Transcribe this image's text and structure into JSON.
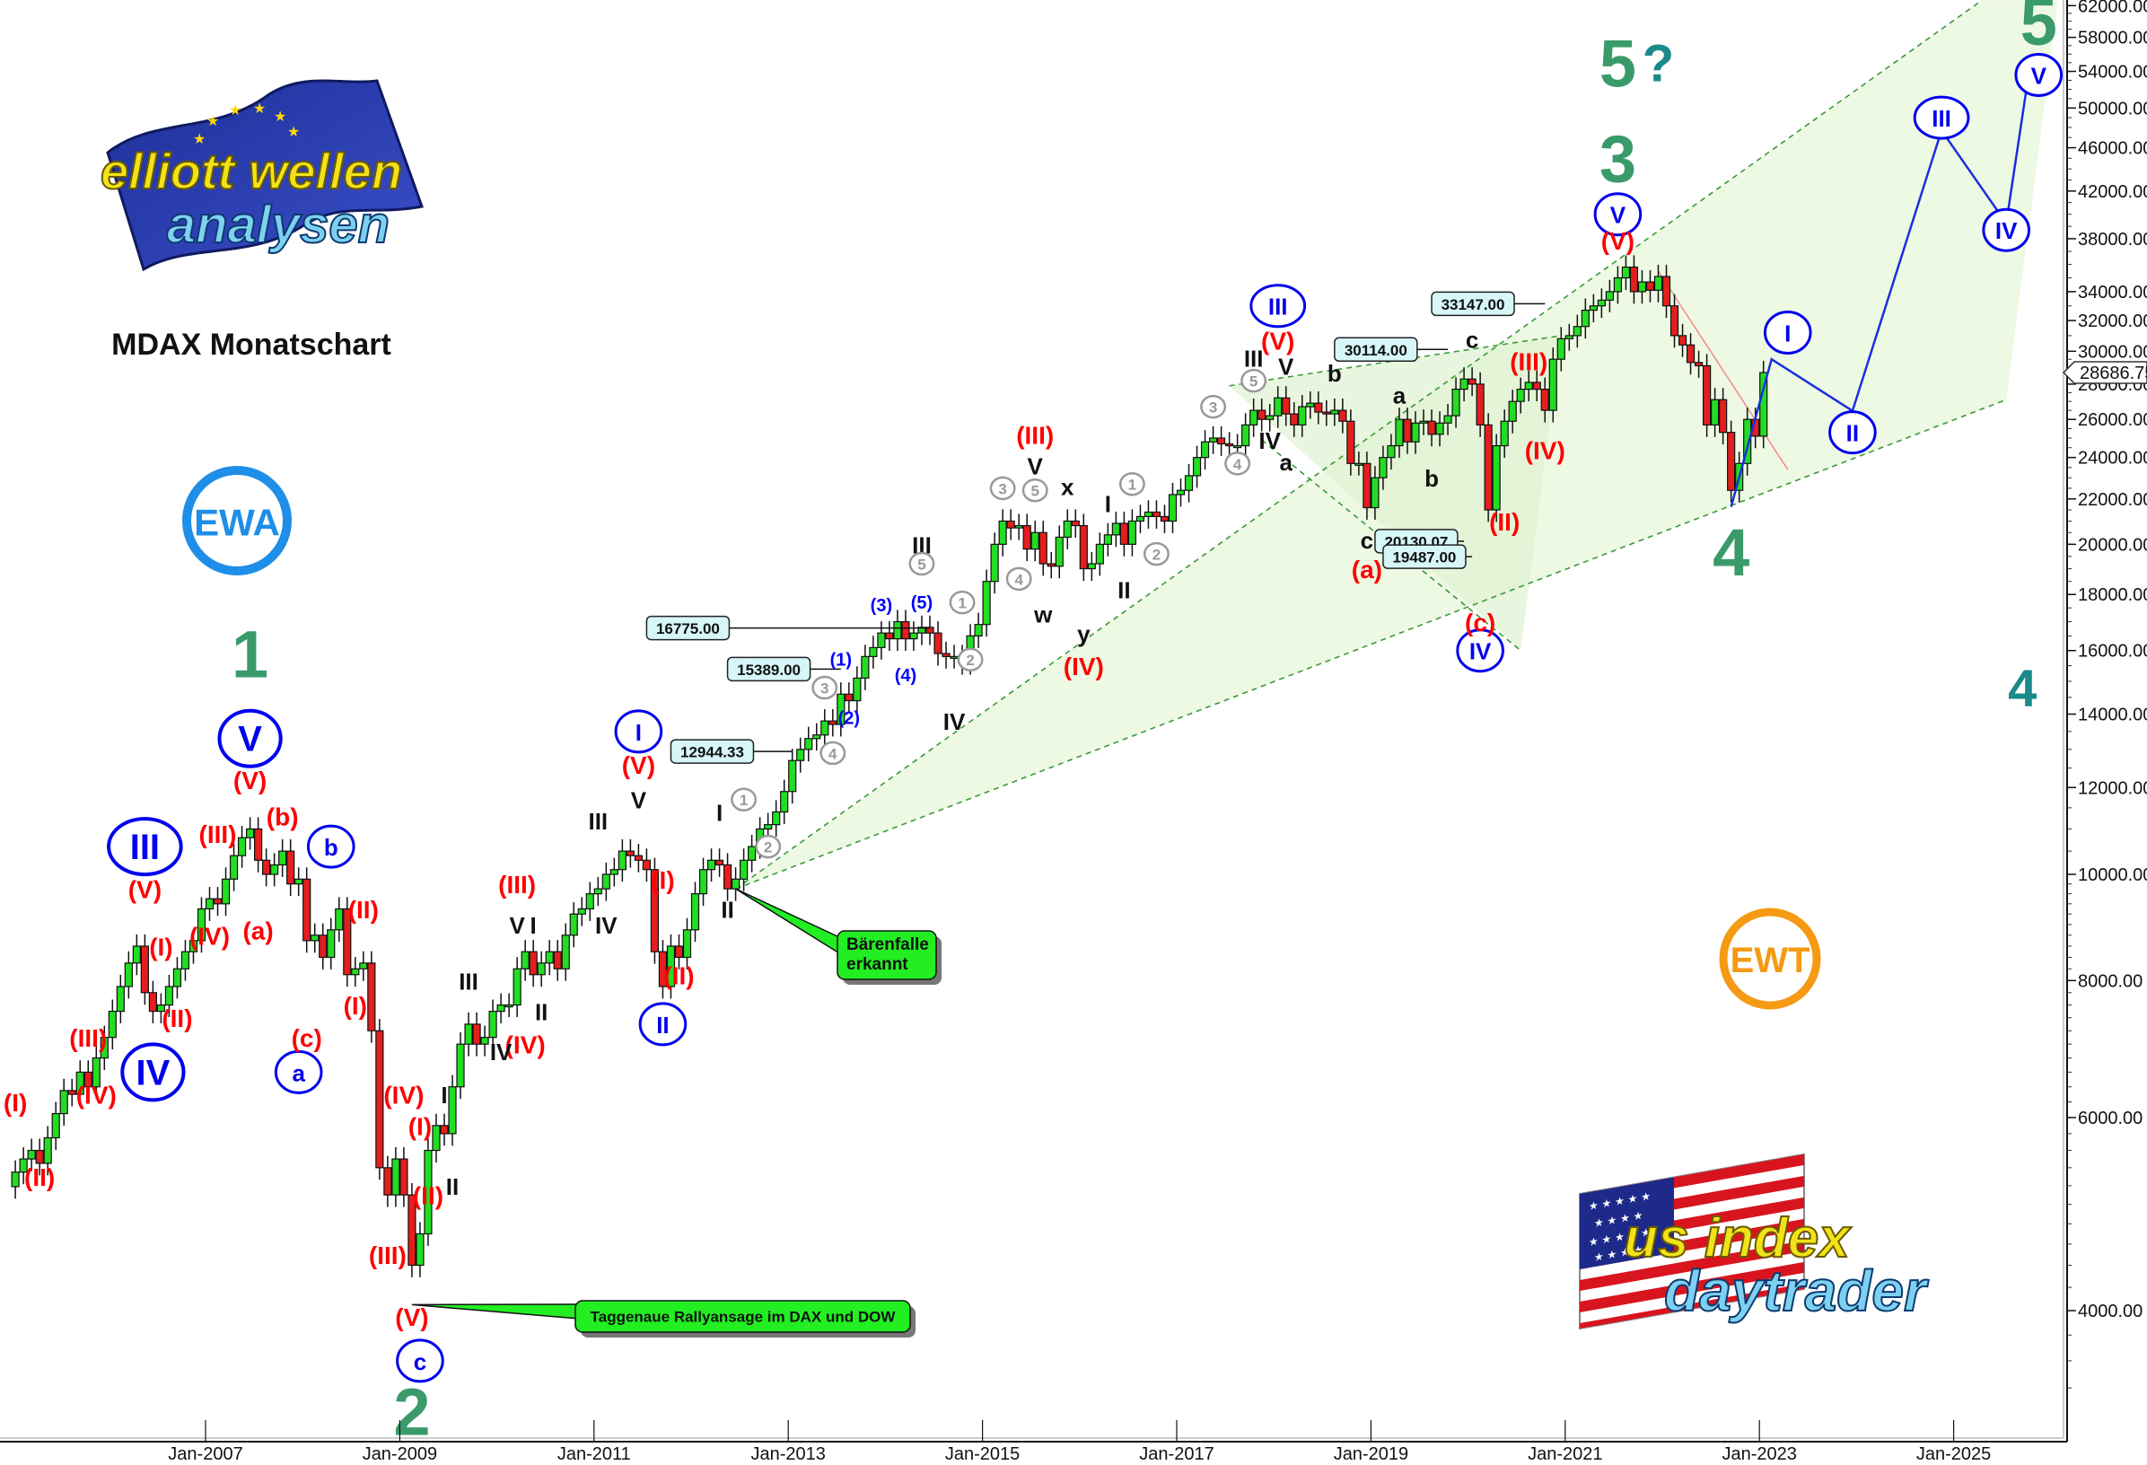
{
  "title": "MDAX Monatschart",
  "logos": {
    "top_left_line1": "elliott wellen",
    "top_left_line2": "analysen",
    "ewa": "EWA",
    "ewt": "EWT",
    "bottom_right_line1": "us index",
    "bottom_right_line2": "daytrader"
  },
  "colors": {
    "up_candle": "#22dd22",
    "down_candle": "#e41e1e",
    "wave_red": "#ff0000",
    "wave_blue": "#0000ee",
    "wave_green": "#3a9a6a",
    "wave_teal": "#1a8a8a",
    "channel_fill": "#eef9e4",
    "callout_fill": "#22ee22",
    "price_box_fill": "#d6f6f8"
  },
  "callouts": [
    {
      "text_lines": [
        "Bärenfalle",
        "erkannt"
      ],
      "anchor_date": "2012-06",
      "anchor_price": 9700
    },
    {
      "text_lines": [
        "Taggenaue Rallyansage im DAX und DOW"
      ],
      "anchor_date": "2009-02",
      "anchor_price": 4050
    }
  ],
  "chart_data": {
    "type": "candlestick",
    "scale": "log",
    "ylim": [
      3300,
      62700
    ],
    "xlim": [
      "2004-12",
      "2026-04"
    ],
    "grid": false,
    "x_ticks": [
      "Jan-2007",
      "Jan-2009",
      "Jan-2011",
      "Jan-2013",
      "Jan-2015",
      "Jan-2017",
      "Jan-2019",
      "Jan-2021",
      "Jan-2023",
      "Jan-2025"
    ],
    "y_ticks": [
      4000,
      6000,
      8000,
      10000,
      12000,
      14000,
      16000,
      18000,
      20000,
      22000,
      24000,
      26000,
      28000,
      30000,
      32000,
      34000,
      38000,
      42000,
      46000,
      50000,
      54000,
      58000,
      62000
    ],
    "y_tick_labels": [
      "4000.00",
      "6000.00",
      "8000.00",
      "10000.00",
      "12000.00",
      "14000.00",
      "16000.00",
      "18000.00",
      "20000.00",
      "22000.00",
      "24000.00",
      "26000.00",
      "28000.00",
      "30000.00",
      "32000.00",
      "34000.00",
      "38000.00",
      "42000.00",
      "46000.00",
      "50000.00",
      "54000.00",
      "58000.00",
      "62000.00"
    ],
    "last_price": 28686.75,
    "last_price_label": "28686.75",
    "candles": {
      "start": "2005-01",
      "interval": "month",
      "close": [
        5350,
        5500,
        5600,
        5450,
        5750,
        6050,
        6350,
        6300,
        6600,
        6400,
        6800,
        7100,
        7500,
        7900,
        8300,
        8600,
        7800,
        7500,
        7600,
        7900,
        8200,
        8500,
        8700,
        9300,
        9500,
        9400,
        9900,
        10400,
        10800,
        11000,
        10300,
        10000,
        10200,
        10500,
        9800,
        9900,
        8700,
        8800,
        8400,
        8900,
        9300,
        8100,
        8200,
        8300,
        7200,
        5400,
        5100,
        5500,
        5100,
        4400,
        4700,
        5600,
        5900,
        5800,
        6400,
        7000,
        7300,
        7000,
        7100,
        7500,
        7600,
        7600,
        8200,
        8500,
        8100,
        8300,
        8500,
        8200,
        8800,
        9200,
        9300,
        9600,
        9700,
        10000,
        10100,
        10500,
        10400,
        10300,
        10100,
        8500,
        7900,
        8600,
        8400,
        8900,
        9600,
        10100,
        10300,
        10200,
        9700,
        9900,
        10300,
        10600,
        11000,
        11100,
        11400,
        11900,
        12700,
        13000,
        13300,
        13400,
        13800,
        13700,
        14600,
        14400,
        15100,
        15800,
        16100,
        16600,
        16400,
        17000,
        16400,
        16600,
        16800,
        16600,
        15900,
        15800,
        15800,
        15600,
        16500,
        16900,
        18500,
        20000,
        21000,
        20700,
        20800,
        19800,
        20500,
        19200,
        19100,
        20300,
        21000,
        20800,
        19000,
        19200,
        20000,
        20400,
        20900,
        20000,
        21000,
        21200,
        21400,
        21200,
        21000,
        22200,
        22400,
        23100,
        24000,
        24800,
        25000,
        24700,
        24600,
        24600,
        25700,
        26500,
        26000,
        26200,
        27200,
        26300,
        25700,
        26700,
        26900,
        26400,
        26300,
        26500,
        25900,
        23700,
        23700,
        21600,
        23000,
        24000,
        24600,
        26000,
        24800,
        25800,
        25900,
        25200,
        25800,
        26200,
        27700,
        28300,
        28000,
        25700,
        21500,
        24600,
        25900,
        27000,
        27700,
        28100,
        27700,
        26500,
        29500,
        30800,
        31000,
        31600,
        32700,
        33000,
        33400,
        34000,
        35000,
        35800,
        34000,
        34700,
        34100,
        35100,
        33000,
        31000,
        30400,
        29300,
        29100,
        25700,
        27100,
        25300,
        22400,
        23700,
        26000,
        25100,
        28687
      ]
    },
    "price_levels": [
      {
        "label": "33147.00",
        "price": 33147,
        "box_date": "2019-08",
        "line_end_date": "2020-10"
      },
      {
        "label": "30114.00",
        "price": 30114,
        "box_date": "2018-08",
        "line_end_date": "2019-10"
      },
      {
        "label": "20130.07",
        "price": 20130.07,
        "box_date": "2019-01",
        "line_end_date": "2019-12"
      },
      {
        "label": "19487.00",
        "price": 19487,
        "box_date": "2019-02",
        "line_end_date": "2020-01"
      },
      {
        "label": "16775.00",
        "price": 16775,
        "box_date": "2011-07",
        "line_end_date": "2014-06"
      },
      {
        "label": "15389.00",
        "price": 15389,
        "box_date": "2012-05",
        "line_end_date": "2013-07"
      },
      {
        "label": "12944.33",
        "price": 12944.33,
        "box_date": "2011-10",
        "line_end_date": "2013-01"
      }
    ],
    "trendlines": [
      {
        "from": [
          "2012-06",
          9700
        ],
        "to": [
          "2025-04",
          62700
        ],
        "style": "green-dashed"
      },
      {
        "from": [
          "2012-06",
          9700
        ],
        "to": [
          "2025-07",
          27100
        ],
        "style": "green-dashed"
      },
      {
        "from": [
          "2017-07",
          27900
        ],
        "to": [
          "2020-12",
          31000
        ],
        "style": "green-dashed"
      },
      {
        "from": [
          "2017-11",
          24900
        ],
        "to": [
          "2020-07",
          16000
        ],
        "style": "green-dashed"
      },
      {
        "from": [
          "2021-12",
          35500
        ],
        "to": [
          "2023-04",
          23400
        ],
        "style": "red-thin"
      }
    ],
    "projection_path": [
      [
        "2022-09",
        21640
      ],
      [
        "2023-02",
        29500
      ],
      [
        "2023-12",
        26470
      ],
      [
        "2024-11",
        47700
      ],
      [
        "2025-07",
        39250
      ],
      [
        "2025-10",
        55100
      ]
    ],
    "wave_labels": [
      {
        "text": "1",
        "date": "2007-06",
        "price": 15900,
        "style": "green"
      },
      {
        "text": "2",
        "date": "2009-02",
        "price": 3240,
        "style": "green"
      },
      {
        "text": "3",
        "date": "2021-07",
        "price": 45000,
        "style": "green"
      },
      {
        "text": "4",
        "date": "2022-09",
        "price": 19700,
        "style": "green"
      },
      {
        "text": "5",
        "date": "2021-07",
        "price": 55000,
        "style": "green"
      },
      {
        "text": "?",
        "date": "2021-12",
        "price": 55000,
        "style": "teal"
      },
      {
        "text": "5",
        "date": "2025-11",
        "price": 60000,
        "style": "green"
      },
      {
        "text": "4",
        "date": "2025-09",
        "price": 14800,
        "style": "teal"
      },
      {
        "text": "III",
        "date": "2006-05",
        "price": 10600,
        "style": "blue-circle-lg"
      },
      {
        "text": "IV",
        "date": "2006-06",
        "price": 6600,
        "style": "blue-circle-lg"
      },
      {
        "text": "V",
        "date": "2007-06",
        "price": 13300,
        "style": "blue-circle-lg"
      },
      {
        "text": "b",
        "date": "2008-04",
        "price": 10600,
        "style": "blue-circle"
      },
      {
        "text": "a",
        "date": "2007-12",
        "price": 6600,
        "style": "blue-circle"
      },
      {
        "text": "c",
        "date": "2009-03",
        "price": 3600,
        "style": "blue-circle"
      },
      {
        "text": "I",
        "date": "2011-06",
        "price": 13500,
        "style": "blue-circle"
      },
      {
        "text": "II",
        "date": "2011-09",
        "price": 7300,
        "style": "blue-circle"
      },
      {
        "text": "III",
        "date": "2018-01",
        "price": 33000,
        "style": "blue-circle"
      },
      {
        "text": "IV",
        "date": "2020-02",
        "price": 16000,
        "style": "blue-circle"
      },
      {
        "text": "V",
        "date": "2021-07",
        "price": 40000,
        "style": "blue-circle"
      },
      {
        "text": "I",
        "date": "2023-04",
        "price": 31200,
        "style": "blue-circle"
      },
      {
        "text": "II",
        "date": "2023-12",
        "price": 25300,
        "style": "blue-circle"
      },
      {
        "text": "III",
        "date": "2024-11",
        "price": 49000,
        "style": "blue-circle"
      },
      {
        "text": "IV",
        "date": "2025-07",
        "price": 38700,
        "style": "blue-circle"
      },
      {
        "text": "V",
        "date": "2025-11",
        "price": 53600,
        "style": "blue-circle"
      },
      {
        "text": "(I)",
        "date": "2005-01",
        "price": 6200,
        "style": "red"
      },
      {
        "text": "(II)",
        "date": "2005-04",
        "price": 5300,
        "style": "red"
      },
      {
        "text": "(III)",
        "date": "2005-10",
        "price": 7100,
        "style": "red"
      },
      {
        "text": "(IV)",
        "date": "2005-11",
        "price": 6300,
        "style": "red"
      },
      {
        "text": "(V)",
        "date": "2006-05",
        "price": 9700,
        "style": "red"
      },
      {
        "text": "(I)",
        "date": "2006-07",
        "price": 8600,
        "style": "red"
      },
      {
        "text": "(II)",
        "date": "2006-09",
        "price": 7400,
        "style": "red"
      },
      {
        "text": "(III)",
        "date": "2007-02",
        "price": 10900,
        "style": "red"
      },
      {
        "text": "(IV)",
        "date": "2007-01",
        "price": 8800,
        "style": "red"
      },
      {
        "text": "(V)",
        "date": "2007-06",
        "price": 12200,
        "style": "red"
      },
      {
        "text": "(a)",
        "date": "2007-07",
        "price": 8900,
        "style": "red"
      },
      {
        "text": "(b)",
        "date": "2007-10",
        "price": 11300,
        "style": "red"
      },
      {
        "text": "(c)",
        "date": "2008-01",
        "price": 7100,
        "style": "red"
      },
      {
        "text": "(II)",
        "date": "2008-08",
        "price": 9300,
        "style": "red"
      },
      {
        "text": "(I)",
        "date": "2008-07",
        "price": 7600,
        "style": "red"
      },
      {
        "text": "(IV)",
        "date": "2009-01",
        "price": 6300,
        "style": "red"
      },
      {
        "text": "(I)",
        "date": "2009-03",
        "price": 5900,
        "style": "red"
      },
      {
        "text": "(II)",
        "date": "2009-04",
        "price": 5100,
        "style": "red"
      },
      {
        "text": "(III)",
        "date": "2008-11",
        "price": 4500,
        "style": "red"
      },
      {
        "text": "(V)",
        "date": "2009-02",
        "price": 3950,
        "style": "red"
      },
      {
        "text": "(III)",
        "date": "2010-03",
        "price": 9800,
        "style": "red"
      },
      {
        "text": "(IV)",
        "date": "2010-04",
        "price": 7000,
        "style": "red"
      },
      {
        "text": "(V)",
        "date": "2011-06",
        "price": 12600,
        "style": "red"
      },
      {
        "text": "(I)",
        "date": "2011-09",
        "price": 9900,
        "style": "red"
      },
      {
        "text": "(II)",
        "date": "2011-11",
        "price": 8100,
        "style": "red"
      },
      {
        "text": "(III)",
        "date": "2015-07",
        "price": 25200,
        "style": "red"
      },
      {
        "text": "(IV)",
        "date": "2016-01",
        "price": 15500,
        "style": "red"
      },
      {
        "text": "(V)",
        "date": "2018-01",
        "price": 30700,
        "style": "red"
      },
      {
        "text": "(a)",
        "date": "2018-12",
        "price": 19000,
        "style": "red"
      },
      {
        "text": "(c)",
        "date": "2020-02",
        "price": 17000,
        "style": "red"
      },
      {
        "text": "(II)",
        "date": "2020-05",
        "price": 21000,
        "style": "red"
      },
      {
        "text": "(III)",
        "date": "2020-08",
        "price": 29400,
        "style": "red"
      },
      {
        "text": "(IV)",
        "date": "2020-10",
        "price": 24400,
        "style": "red"
      },
      {
        "text": "(V)",
        "date": "2021-07",
        "price": 37900,
        "style": "red"
      },
      {
        "text": "I",
        "date": "2009-06",
        "price": 6300,
        "style": "black"
      },
      {
        "text": "II",
        "date": "2009-07",
        "price": 5200,
        "style": "black"
      },
      {
        "text": "III",
        "date": "2009-09",
        "price": 8000,
        "style": "black"
      },
      {
        "text": "IV",
        "date": "2010-01",
        "price": 6900,
        "style": "black"
      },
      {
        "text": "V",
        "date": "2010-03",
        "price": 9000,
        "style": "black"
      },
      {
        "text": "I",
        "date": "2010-05",
        "price": 9000,
        "style": "black"
      },
      {
        "text": "II",
        "date": "2010-06",
        "price": 7500,
        "style": "black"
      },
      {
        "text": "III",
        "date": "2011-01",
        "price": 11200,
        "style": "black"
      },
      {
        "text": "IV",
        "date": "2011-02",
        "price": 9000,
        "style": "black"
      },
      {
        "text": "V",
        "date": "2011-06",
        "price": 11700,
        "style": "black"
      },
      {
        "text": "I",
        "date": "2012-04",
        "price": 11400,
        "style": "black"
      },
      {
        "text": "II",
        "date": "2012-05",
        "price": 9300,
        "style": "black"
      },
      {
        "text": "III",
        "date": "2014-05",
        "price": 20000,
        "style": "black"
      },
      {
        "text": "IV",
        "date": "2014-09",
        "price": 13800,
        "style": "black"
      },
      {
        "text": "V",
        "date": "2015-07",
        "price": 23600,
        "style": "black"
      },
      {
        "text": "w",
        "date": "2015-08",
        "price": 17300,
        "style": "black"
      },
      {
        "text": "x",
        "date": "2015-11",
        "price": 22600,
        "style": "black"
      },
      {
        "text": "y",
        "date": "2016-01",
        "price": 16600,
        "style": "black"
      },
      {
        "text": "I",
        "date": "2016-04",
        "price": 21800,
        "style": "black"
      },
      {
        "text": "II",
        "date": "2016-06",
        "price": 18200,
        "style": "black"
      },
      {
        "text": "III",
        "date": "2017-10",
        "price": 29600,
        "style": "black"
      },
      {
        "text": "IV",
        "date": "2017-12",
        "price": 24900,
        "style": "black"
      },
      {
        "text": "V",
        "date": "2018-02",
        "price": 29100,
        "style": "black"
      },
      {
        "text": "a",
        "date": "2018-02",
        "price": 23800,
        "style": "black"
      },
      {
        "text": "b",
        "date": "2018-08",
        "price": 28700,
        "style": "black"
      },
      {
        "text": "a",
        "date": "2019-04",
        "price": 27400,
        "style": "black"
      },
      {
        "text": "b",
        "date": "2019-08",
        "price": 23000,
        "style": "black"
      },
      {
        "text": "c",
        "date": "2018-12",
        "price": 20200,
        "style": "black"
      },
      {
        "text": "c",
        "date": "2020-01",
        "price": 30800,
        "style": "black"
      },
      {
        "text": "1",
        "date": "2012-07",
        "price": 11700,
        "style": "gray-circle"
      },
      {
        "text": "2",
        "date": "2012-10",
        "price": 10600,
        "style": "gray-circle"
      },
      {
        "text": "3",
        "date": "2013-05",
        "price": 14800,
        "style": "gray-circle"
      },
      {
        "text": "4",
        "date": "2013-06",
        "price": 12900,
        "style": "gray-circle"
      },
      {
        "text": "5",
        "date": "2014-05",
        "price": 19200,
        "style": "gray-circle"
      },
      {
        "text": "1",
        "date": "2014-10",
        "price": 17700,
        "style": "gray-circle"
      },
      {
        "text": "2",
        "date": "2014-11",
        "price": 15700,
        "style": "gray-circle"
      },
      {
        "text": "3",
        "date": "2015-03",
        "price": 22500,
        "style": "gray-circle"
      },
      {
        "text": "4",
        "date": "2015-05",
        "price": 18600,
        "style": "gray-circle"
      },
      {
        "text": "5",
        "date": "2015-07",
        "price": 22400,
        "style": "gray-circle"
      },
      {
        "text": "1",
        "date": "2016-07",
        "price": 22700,
        "style": "gray-circle"
      },
      {
        "text": "2",
        "date": "2016-10",
        "price": 19600,
        "style": "gray-circle"
      },
      {
        "text": "3",
        "date": "2017-05",
        "price": 26700,
        "style": "gray-circle"
      },
      {
        "text": "4",
        "date": "2017-08",
        "price": 23700,
        "style": "gray-circle"
      },
      {
        "text": "5",
        "date": "2017-10",
        "price": 28200,
        "style": "gray-circle"
      },
      {
        "text": "(1)",
        "date": "2013-07",
        "price": 15700,
        "style": "blue"
      },
      {
        "text": "(2)",
        "date": "2013-08",
        "price": 13900,
        "style": "blue"
      },
      {
        "text": "(3)",
        "date": "2013-12",
        "price": 17600,
        "style": "blue"
      },
      {
        "text": "(4)",
        "date": "2014-03",
        "price": 15200,
        "style": "blue"
      },
      {
        "text": "(5)",
        "date": "2014-05",
        "price": 17700,
        "style": "blue"
      }
    ]
  }
}
